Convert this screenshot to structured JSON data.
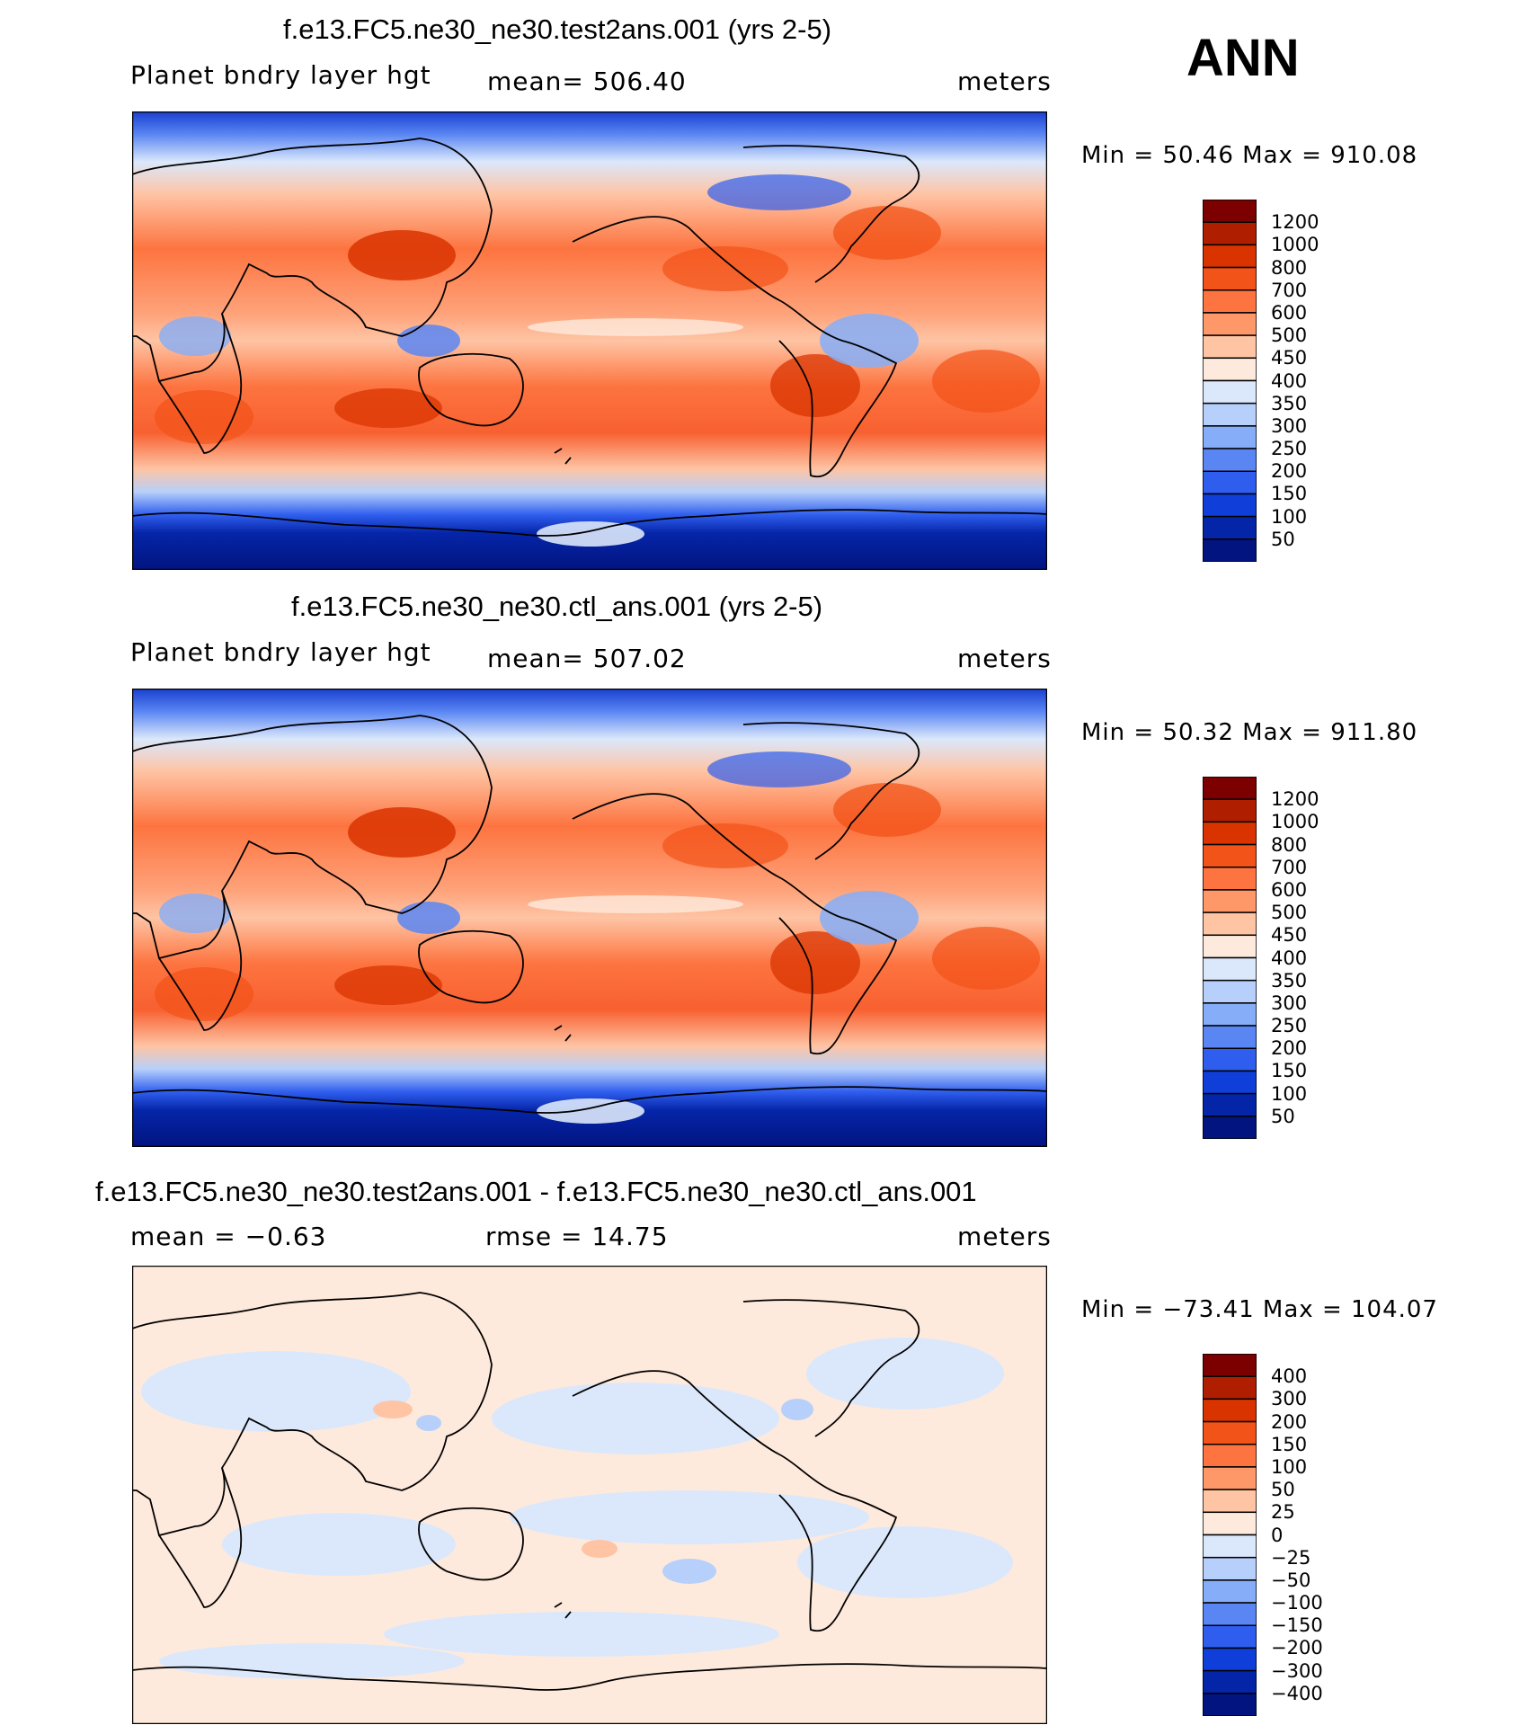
{
  "season": "ANN",
  "units": "meters",
  "panels": [
    {
      "title": "f.e13.FC5.ne30_ne30.test2ans.001 (yrs 2-5)",
      "variable": "Planet bndry layer hgt",
      "stat1": "mean= 506.40",
      "stat2": "",
      "units": "meters",
      "minmax": "Min =   50.46  Max = 910.08"
    },
    {
      "title": "f.e13.FC5.ne30_ne30.ctl_ans.001 (yrs 2-5)",
      "variable": "Planet bndry layer hgt",
      "stat1": "mean= 507.02",
      "stat2": "",
      "units": "meters",
      "minmax": "Min =   50.32  Max = 911.80"
    },
    {
      "title": "f.e13.FC5.ne30_ne30.test2ans.001 - f.e13.FC5.ne30_ne30.ctl_ans.001",
      "variable": "",
      "stat1": "mean =   −0.63",
      "stat2": "rmse =   14.75",
      "units": "meters",
      "minmax": "Min = −73.41  Max = 104.07"
    }
  ],
  "chart_data": [
    {
      "type": "heatmap",
      "title": "f.e13.FC5.ne30_ne30.test2ans.001 (yrs 2-5)",
      "variable": "Planet bndry layer hgt",
      "units": "meters",
      "mean": 506.4,
      "min": 50.46,
      "max": 910.08,
      "projection": "cylindrical equidistant, Pacific-centered",
      "colorbar_levels": [
        "1200",
        "1000",
        "800",
        "700",
        "600",
        "500",
        "450",
        "400",
        "350",
        "300",
        "250",
        "200",
        "150",
        "100",
        "50"
      ],
      "colorbar_colors": [
        "#7d0000",
        "#b01e00",
        "#d93400",
        "#f25318",
        "#fd7440",
        "#fe9868",
        "#fec4a4",
        "#feeadc",
        "#dbe8fb",
        "#b7d0fb",
        "#86aef8",
        "#5a86f3",
        "#2f5eee",
        "#0f3ed8",
        "#0525a8",
        "#021480"
      ]
    },
    {
      "type": "heatmap",
      "title": "f.e13.FC5.ne30_ne30.ctl_ans.001 (yrs 2-5)",
      "variable": "Planet bndry layer hgt",
      "units": "meters",
      "mean": 507.02,
      "min": 50.32,
      "max": 911.8,
      "projection": "cylindrical equidistant, Pacific-centered",
      "colorbar_levels": [
        "1200",
        "1000",
        "800",
        "700",
        "600",
        "500",
        "450",
        "400",
        "350",
        "300",
        "250",
        "200",
        "150",
        "100",
        "50"
      ],
      "colorbar_colors": [
        "#7d0000",
        "#b01e00",
        "#d93400",
        "#f25318",
        "#fd7440",
        "#fe9868",
        "#fec4a4",
        "#feeadc",
        "#dbe8fb",
        "#b7d0fb",
        "#86aef8",
        "#5a86f3",
        "#2f5eee",
        "#0f3ed8",
        "#0525a8",
        "#021480"
      ]
    },
    {
      "type": "heatmap",
      "title": "f.e13.FC5.ne30_ne30.test2ans.001 - f.e13.FC5.ne30_ne30.ctl_ans.001",
      "units": "meters",
      "mean": -0.63,
      "rmse": 14.75,
      "min": -73.41,
      "max": 104.07,
      "projection": "cylindrical equidistant, Pacific-centered",
      "colorbar_levels": [
        "400",
        "300",
        "200",
        "150",
        "100",
        "50",
        "25",
        "0",
        "−25",
        "−50",
        "−100",
        "−150",
        "−200",
        "−300",
        "−400"
      ],
      "colorbar_colors": [
        "#7d0000",
        "#b01e00",
        "#d93400",
        "#f25318",
        "#fd7440",
        "#fe9868",
        "#fec4a4",
        "#feeadc",
        "#dbe8fb",
        "#b7d0fb",
        "#86aef8",
        "#5a86f3",
        "#2f5eee",
        "#0f3ed8",
        "#0525a8",
        "#021480"
      ]
    }
  ]
}
